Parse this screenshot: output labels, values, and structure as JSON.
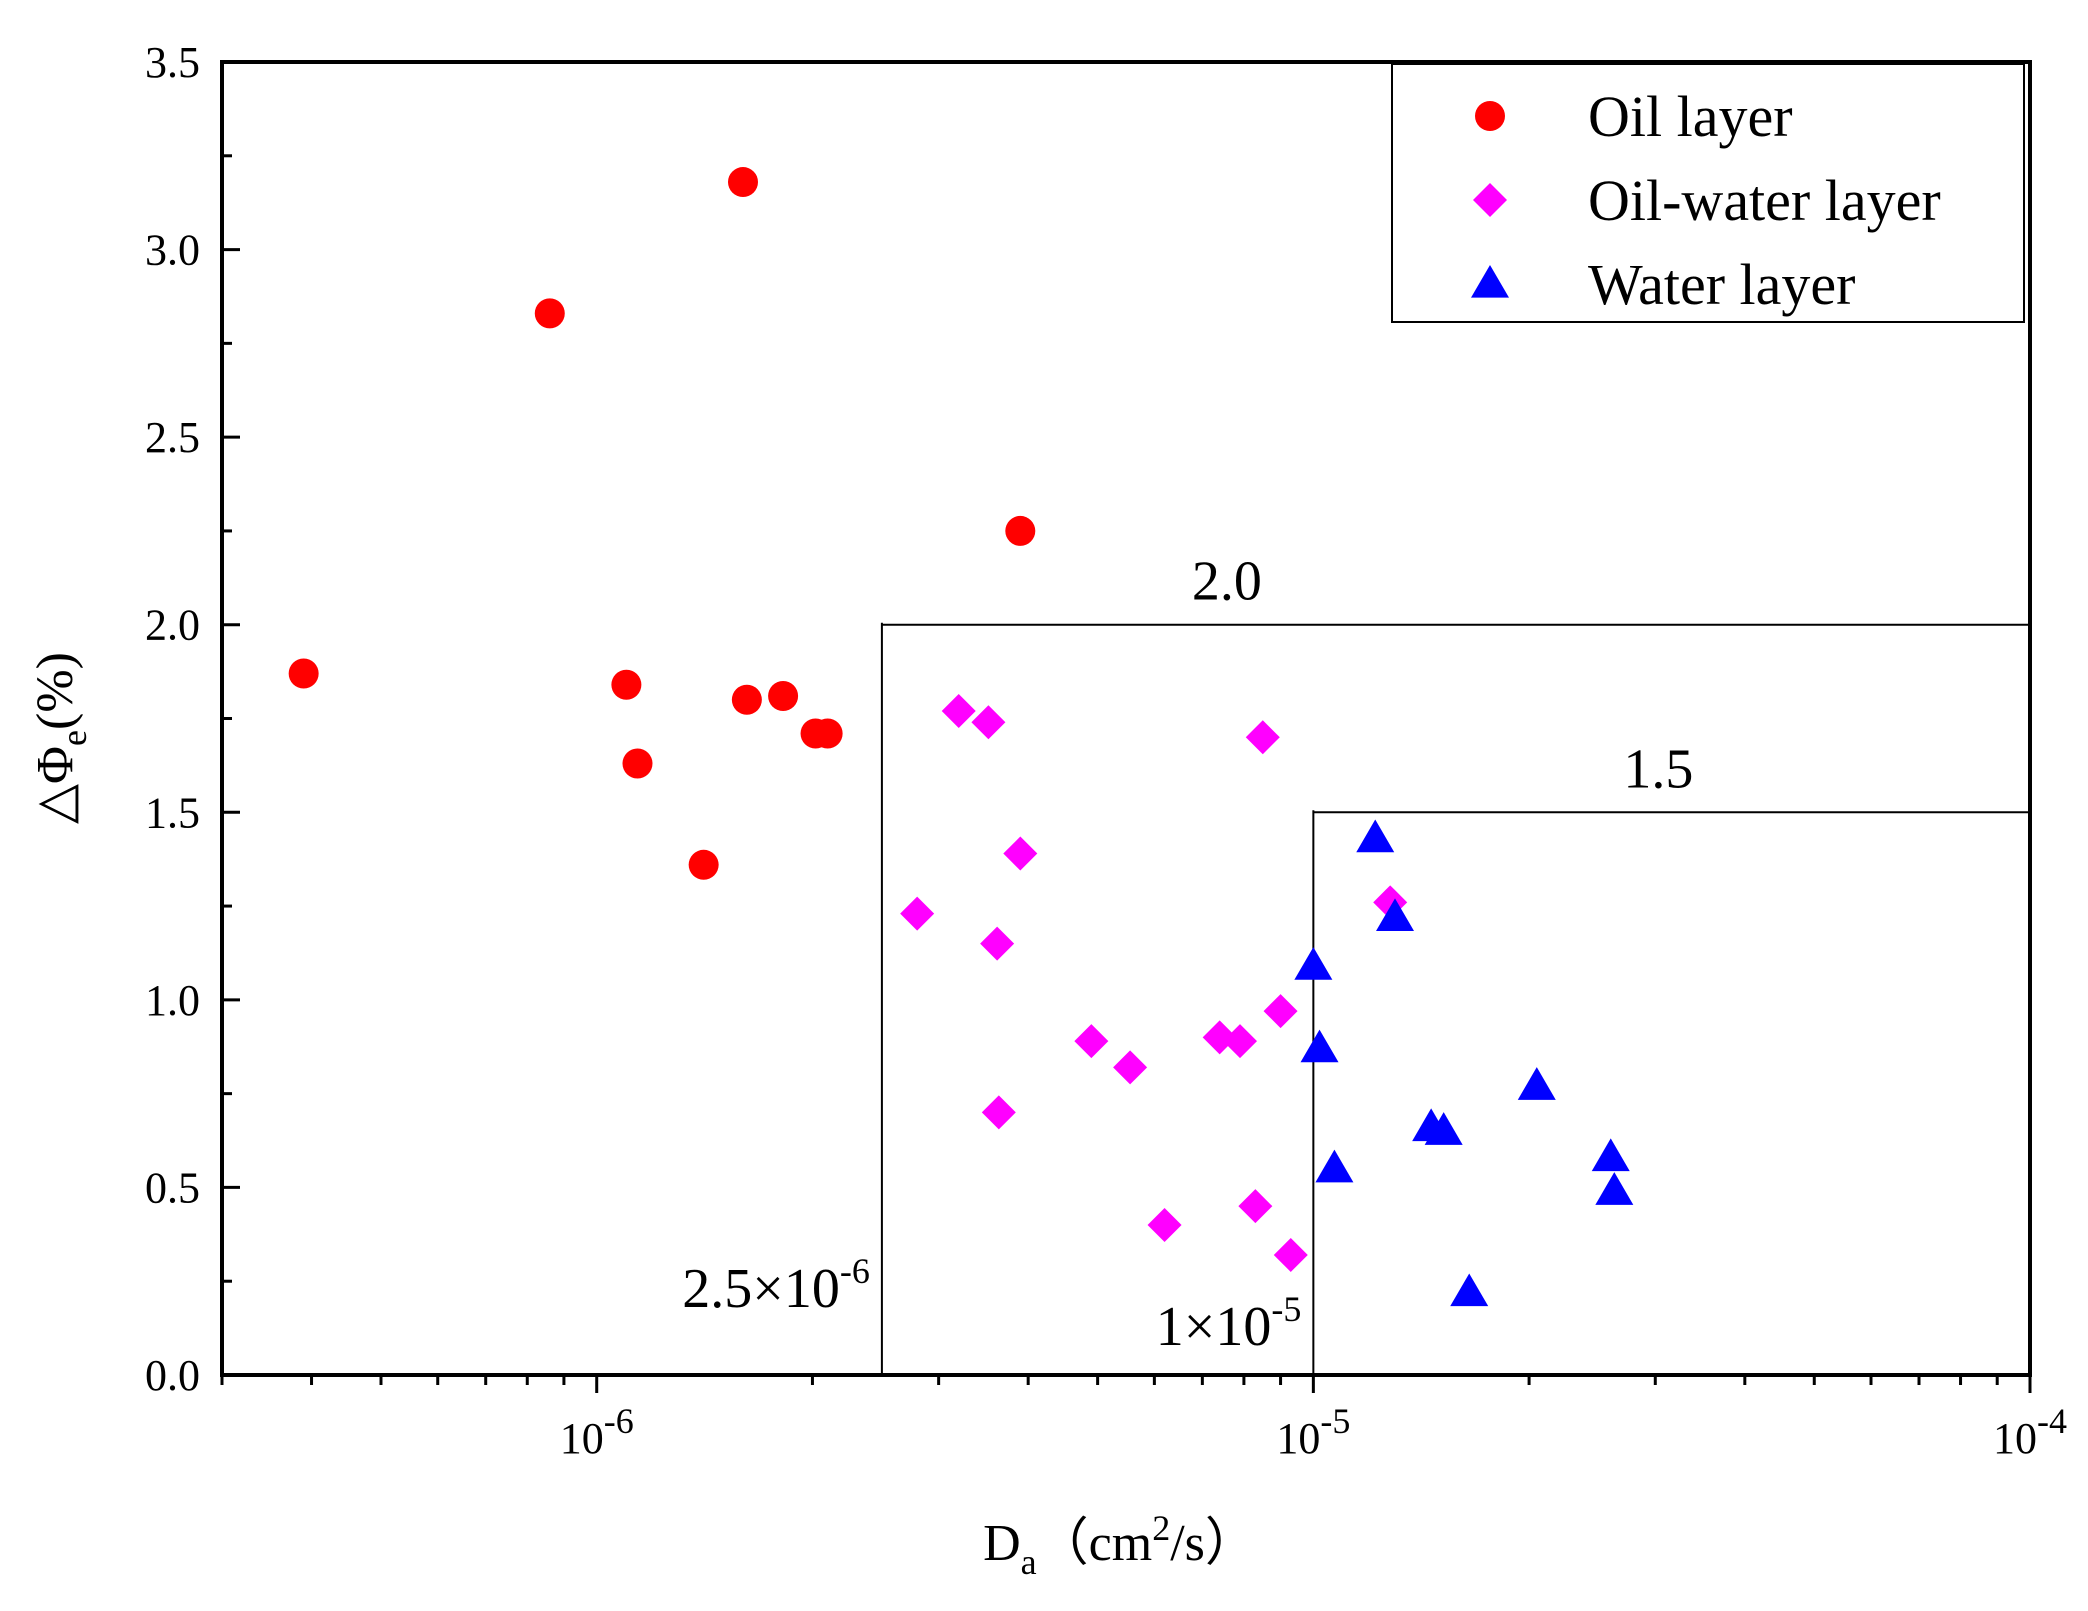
{
  "chart_data": {
    "type": "scatter",
    "title": "",
    "x_scale": "log",
    "xlim": [
      3e-07,
      0.0001
    ],
    "ylim": [
      0,
      3.5
    ],
    "xlabel": {
      "main": "D",
      "sub": "a",
      "unit_open": "（cm",
      "unit_sup": "2",
      "unit_close": "/s）"
    },
    "ylabel": {
      "prefix": "△Φ",
      "sub": "e",
      "suffix": "(%)"
    },
    "x_ticks": [
      {
        "value": 1e-06,
        "base": "10",
        "exp": "-6"
      },
      {
        "value": 1e-05,
        "base": "10",
        "exp": "-5"
      },
      {
        "value": 0.0001,
        "base": "10",
        "exp": "-4"
      }
    ],
    "y_ticks": [
      {
        "value": 0.0,
        "label": "0.0"
      },
      {
        "value": 0.5,
        "label": "0.5"
      },
      {
        "value": 1.0,
        "label": "1.0"
      },
      {
        "value": 1.5,
        "label": "1.5"
      },
      {
        "value": 2.0,
        "label": "2.0"
      },
      {
        "value": 2.5,
        "label": "2.5"
      },
      {
        "value": 3.0,
        "label": "3.0"
      },
      {
        "value": 3.5,
        "label": "3.5"
      }
    ],
    "legend_position": "top-right",
    "series": [
      {
        "name": "Oil layer",
        "marker": "circle",
        "color": "#ff0000",
        "points": [
          {
            "x": 3.9e-07,
            "y": 1.87
          },
          {
            "x": 8.6e-07,
            "y": 2.83
          },
          {
            "x": 1.1e-06,
            "y": 1.84
          },
          {
            "x": 1.14e-06,
            "y": 1.63
          },
          {
            "x": 1.41e-06,
            "y": 1.36
          },
          {
            "x": 1.6e-06,
            "y": 3.18
          },
          {
            "x": 1.62e-06,
            "y": 1.8
          },
          {
            "x": 1.82e-06,
            "y": 1.81
          },
          {
            "x": 2.02e-06,
            "y": 1.71
          },
          {
            "x": 2.1e-06,
            "y": 1.71
          },
          {
            "x": 3.9e-06,
            "y": 2.25
          }
        ]
      },
      {
        "name": "Oil-water layer",
        "marker": "diamond",
        "color": "#ff00ff",
        "points": [
          {
            "x": 2.8e-06,
            "y": 1.23
          },
          {
            "x": 3.2e-06,
            "y": 1.77
          },
          {
            "x": 3.52e-06,
            "y": 1.74
          },
          {
            "x": 3.62e-06,
            "y": 1.15
          },
          {
            "x": 3.64e-06,
            "y": 0.7
          },
          {
            "x": 3.9e-06,
            "y": 1.39
          },
          {
            "x": 4.9e-06,
            "y": 0.89
          },
          {
            "x": 5.55e-06,
            "y": 0.82
          },
          {
            "x": 6.2e-06,
            "y": 0.4
          },
          {
            "x": 7.4e-06,
            "y": 0.9
          },
          {
            "x": 7.9e-06,
            "y": 0.89
          },
          {
            "x": 8.3e-06,
            "y": 0.45
          },
          {
            "x": 8.5e-06,
            "y": 1.7
          },
          {
            "x": 9e-06,
            "y": 0.97
          },
          {
            "x": 9.3e-06,
            "y": 0.32
          },
          {
            "x": 1.28e-05,
            "y": 1.26
          }
        ]
      },
      {
        "name": "Water layer",
        "marker": "triangle",
        "color": "#0000ff",
        "points": [
          {
            "x": 1e-05,
            "y": 1.09
          },
          {
            "x": 1.02e-05,
            "y": 0.87
          },
          {
            "x": 1.07e-05,
            "y": 0.55
          },
          {
            "x": 1.22e-05,
            "y": 1.43
          },
          {
            "x": 1.3e-05,
            "y": 1.22
          },
          {
            "x": 1.46e-05,
            "y": 0.66
          },
          {
            "x": 1.52e-05,
            "y": 0.65
          },
          {
            "x": 1.65e-05,
            "y": 0.22
          },
          {
            "x": 2.05e-05,
            "y": 0.77
          },
          {
            "x": 2.6e-05,
            "y": 0.58
          },
          {
            "x": 2.63e-05,
            "y": 0.49
          }
        ]
      }
    ],
    "guide_regions": [
      {
        "x_start": 2.5e-06,
        "y_top": 2.0,
        "top_label": "2.0",
        "x_label": {
          "mantissa": "2.5×10",
          "exp": "-6"
        }
      },
      {
        "x_start": 1e-05,
        "y_top": 1.5,
        "top_label": "1.5",
        "x_label": {
          "mantissa": "1×10",
          "exp": "-5"
        }
      }
    ]
  }
}
